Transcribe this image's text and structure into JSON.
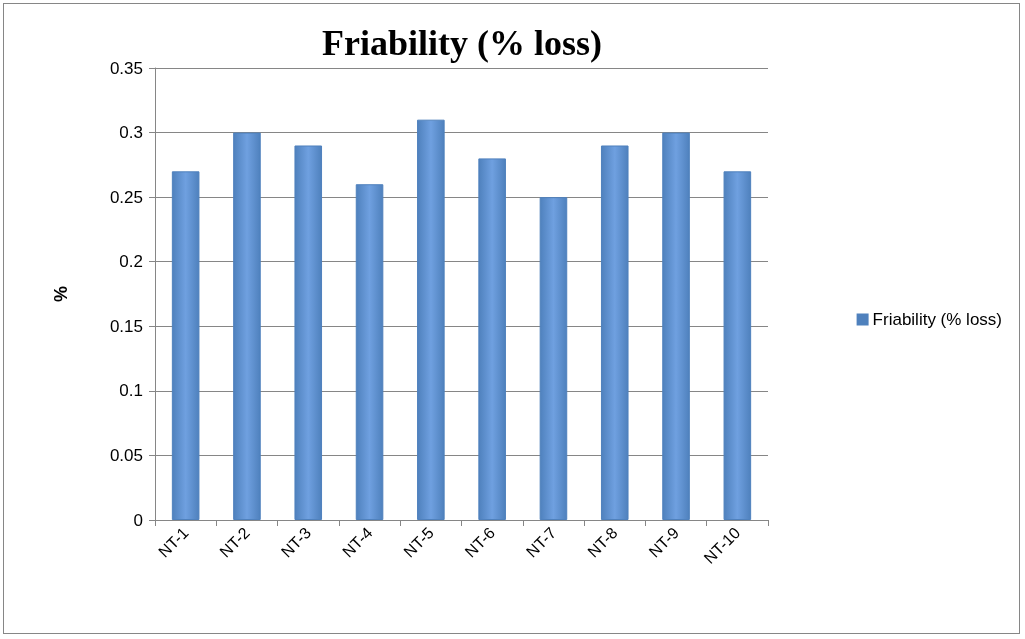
{
  "chart_data": {
    "type": "bar",
    "title": "Friability (% loss)",
    "ylabel": "%",
    "categories": [
      "NT-1",
      "NT-2",
      "NT-3",
      "NT-4",
      "NT-5",
      "NT-6",
      "NT-7",
      "NT-8",
      "NT-9",
      "NT-10"
    ],
    "series": [
      {
        "name": "Friability (% loss)",
        "color": "#4f81bd",
        "values": [
          0.27,
          0.3,
          0.29,
          0.26,
          0.31,
          0.28,
          0.25,
          0.29,
          0.3,
          0.27
        ]
      }
    ],
    "ylim": [
      0,
      0.35
    ],
    "yticks": [
      0,
      0.05,
      0.1,
      0.15,
      0.2,
      0.25,
      0.3,
      0.35
    ],
    "grid": "y",
    "legend": "right"
  }
}
